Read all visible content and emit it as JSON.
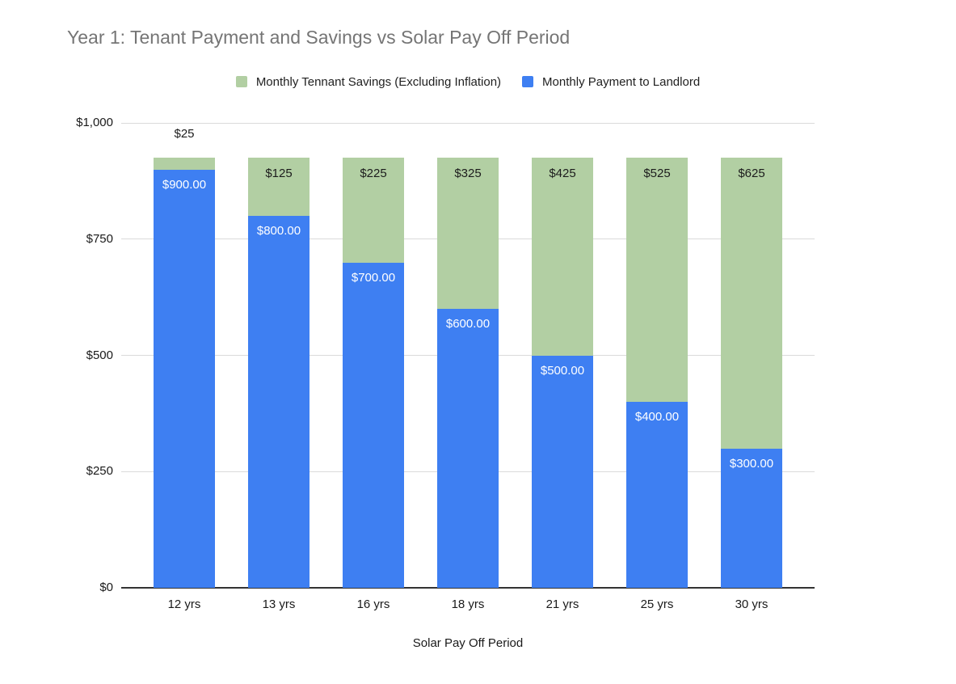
{
  "chart_data": {
    "type": "bar",
    "stacked": true,
    "title": "Year 1: Tenant Payment and Savings vs Solar Pay Off Period",
    "title_color": "#757575",
    "xlabel": "Solar Pay Off Period",
    "ylabel": "",
    "categories": [
      "12 yrs",
      "13 yrs",
      "16 yrs",
      "18 yrs",
      "21 yrs",
      "25 yrs",
      "30 yrs"
    ],
    "series": [
      {
        "name": "Monthly Payment to Landlord",
        "color": "#3e7ff2",
        "label_color": "#ffffff",
        "values": [
          900,
          800,
          700,
          600,
          500,
          400,
          300
        ],
        "labels": [
          "$900.00",
          "$800.00",
          "$700.00",
          "$600.00",
          "$500.00",
          "$400.00",
          "$300.00"
        ]
      },
      {
        "name": "Monthly Tennant Savings (Excluding Inflation)",
        "color": "#b2cfa3",
        "label_color": "#1c1c1c",
        "values": [
          25,
          125,
          225,
          325,
          425,
          525,
          625
        ],
        "labels": [
          "$25",
          "$125",
          "$225",
          "$325",
          "$425",
          "$525",
          "$625"
        ]
      }
    ],
    "legend": [
      {
        "label": "Monthly Tennant Savings (Excluding Inflation)",
        "color": "#b2cfa3"
      },
      {
        "label": "Monthly Payment to Landlord",
        "color": "#3e7ff2"
      }
    ],
    "legend_position": "top",
    "grid": true,
    "ylim": [
      0,
      1000
    ],
    "yticks": [
      {
        "value": 0,
        "label": "$0"
      },
      {
        "value": 250,
        "label": "$250"
      },
      {
        "value": 500,
        "label": "$500"
      },
      {
        "value": 750,
        "label": "$750"
      },
      {
        "value": 1000,
        "label": "$1,000"
      }
    ]
  }
}
